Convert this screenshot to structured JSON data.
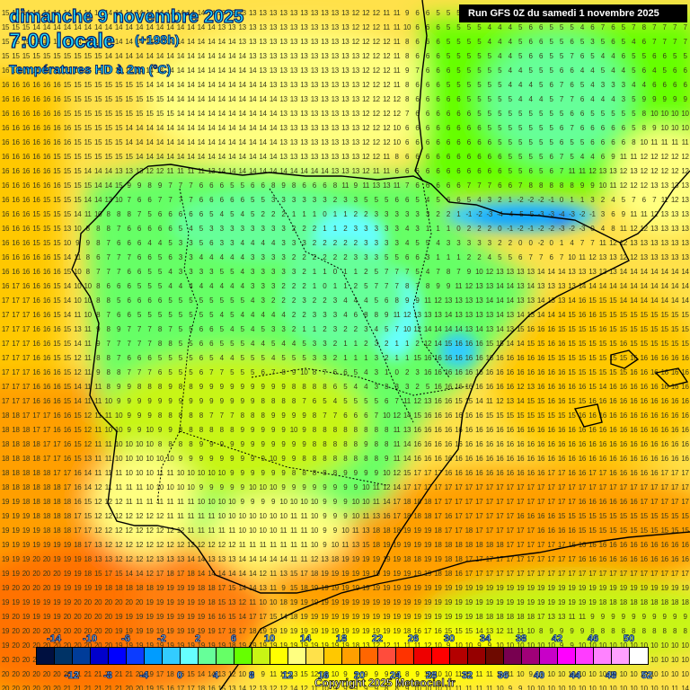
{
  "header": {
    "date": "dimanche 9 novembre 2025",
    "time": "7:00 locale",
    "lead": "(+198h)",
    "parameter": "Températures HD à 2m (°C)",
    "run": "Run GFS 0Z du samedi 1 novembre 2025"
  },
  "footer": {
    "copyright": "Copyright 2025 Meteociel.fr"
  },
  "colorbar": {
    "colors": [
      "#001040",
      "#003366",
      "#003c99",
      "#0000cc",
      "#0000ff",
      "#0c3cff",
      "#009cff",
      "#33ccff",
      "#66ffff",
      "#66ff99",
      "#66ff66",
      "#66ff00",
      "#c8f514",
      "#ffff00",
      "#ffff80",
      "#ffe14a",
      "#ffc800",
      "#ff9f00",
      "#ff6600",
      "#ff4c3c",
      "#ff3300",
      "#ee0000",
      "#ff0000",
      "#b40000",
      "#960000",
      "#6e0a00",
      "#780050",
      "#a00078",
      "#c800c8",
      "#ff00ff",
      "#ff3cff",
      "#ff82ff",
      "#ffa0ff",
      "#ffffff"
    ],
    "top_labels": [
      "-14",
      "-10",
      "-6",
      "-2",
      "2",
      "6",
      "10",
      "14",
      "18",
      "22",
      "26",
      "30",
      "34",
      "38",
      "42",
      "46",
      "50"
    ],
    "bottom_labels": [
      "-12",
      "-8",
      "-4",
      "0",
      "4",
      "8",
      "12",
      "16",
      "20",
      "24",
      "28",
      "32",
      "36",
      "40",
      "44",
      "48",
      "52"
    ]
  },
  "map": {
    "region": "Péninsule Ibérique",
    "value_grid_note": "temperature values °C on 67x48 grid",
    "rows": [
      "15 15 14 14 14 14 14 14 14 14 14 14 14 14 14 14 14 14 14 14 14 13 13 13 13 13 13 13 13 13 13 13 13 13 12 12 12 11 11 9 6 6 5 5 5 4 4 4 4 5 5 6 6 6 6 6 8 7 7 8 8 7 7 7 7 7 7",
      "15 15 15 14 14 14 14 14 14 14 14 14 14 14 14 14 14 14 14 14 14 13 13 13 13 13 13 13 13 13 13 13 13 13 12 12 12 11 11 10 6 6 6 5 5 5 5 4 4 4 5 6 6 5 5 5 4 6 7 6 5 7 8 7 7 7 7",
      "15 15 15 15 15 14 14 14 14 14 14 14 14 14 14 14 14 14 14 14 14 14 14 13 13 13 13 13 13 13 13 13 13 13 12 12 12 12 11 8 6 6 6 5 5 5 5 4 4 4 5 6 6 5 5 6 5 3 5 6 5 4 6 7 7 7 7",
      "15 15 15 15 15 15 15 15 15 15 14 14 14 14 14 14 14 14 14 14 14 14 14 14 13 13 13 13 13 13 13 13 13 13 13 12 12 12 11 8 6 6 6 5 5 5 5 5 4 4 5 6 6 5 5 7 6 5 4 4 6 5 5 6 6 5 5",
      "16 16 15 15 15 15 15 15 15 15 15 15 15 14 14 14 14 14 14 14 14 14 14 14 14 13 13 13 13 13 13 13 13 13 13 12 12 12 11 9 7 6 6 6 5 5 5 5 5 4 4 5 5 5 6 6 4 4 5 4 4 5 6 4 5 6 6",
      "16 16 16 16 16 16 15 15 15 15 15 15 15 15 14 14 14 14 14 14 14 14 14 14 14 14 13 13 13 13 13 13 13 13 13 12 12 12 11 8 6 6 6 5 5 5 5 5 5 4 4 4 5 6 7 6 5 4 3 3 3 4 4 6 6 6 6",
      "16 16 16 16 16 16 15 15 15 15 15 15 15 15 15 15 14 14 14 14 14 14 14 14 14 14 14 13 13 13 13 13 13 13 13 12 12 12 12 8 6 6 6 6 6 5 5 5 5 5 4 4 4 5 7 7 6 4 4 4 3 5 9 9 9 9 9",
      "16 16 16 16 16 16 15 15 15 15 15 15 15 15 15 15 15 14 14 14 14 14 14 14 14 14 14 13 13 13 13 13 13 13 13 12 12 12 12 7 6 6 6 6 6 6 5 5 5 5 5 5 5 5 5 6 6 5 5 5 5 5 8 10 10 10 10",
      "16 16 16 16 16 16 16 15 15 15 15 15 14 14 14 14 14 14 14 14 14 14 14 14 14 14 14 13 13 13 13 13 13 13 13 12 12 12 10 6 6 6 6 6 6 6 6 5 5 5 5 5 5 5 6 7 6 6 6 6 6 5 8 9 10 10 10",
      "16 16 16 16 16 16 16 15 15 15 15 15 14 14 14 14 14 14 14 14 14 14 14 14 14 14 14 13 13 13 13 13 13 13 13 12 12 12 10 6 6 6 6 6 6 6 6 6 5 5 5 5 5 5 6 5 5 6 6 6 6 8 10 11 11 11 11",
      "16 16 16 16 16 15 15 15 15 15 15 15 15 14 14 14 14 14 14 14 14 14 14 14 14 14 14 13 13 13 13 13 13 13 13 12 12 11 8 6 6 6 6 6 6 6 6 6 6 5 5 5 5 6 7 5 4 4 6 9 11 11 12 12 12 12 12",
      "16 16 16 16 16 15 15 15 14 14 14 13 13 13 12 12 11 11 11 11 13 14 14 14 14 14 14 14 14 14 14 14 13 13 13 12 11 11 6 6 6 6 6 6 6 6 6 6 6 5 5 6 5 6 7 11 11 12 13 13 12 13 12 12 12 12 12",
      "16 16 16 16 16 16 15 15 15 14 14 15 9 9 8 9 7 7 7 6 6 6 5 5 6 6 8 9 8 6 6 6 8 11 9 11 13 13 11 7 6 6 6 6 6 7 7 7 6 6 7 8 8 8 8 8 9 9 10 11 12 12 12 13 13 13 13",
      "16 16 16 16 15 15 15 15 14 14 13 10 7 6 6 7 7 7 7 6 6 6 6 6 5 5 3 3 3 3 3 3 2 3 3 5 5 5 6 6 5 4 5 6 6 5 4 3 2 1 -2 -2 -2 -1 0 1 1 3 2 4 5 7 6 7 11 12 13",
      "16 16 16 15 15 15 15 14 11 10 8 8 8 7 5 6 6 6 6 6 5 4 5 4 5 2 2 2 1 1 1 0 1 1 2 2 3 3 3 3 3 3 2 2 1 -1 -2 -3 -4 -4 -5 -5 -3 -3 -4 -3 -2 -1 3 6 9 11 11 12 13 13 13",
      "16 16 16 15 15 15 13 10 8 8 8 7 6 6 6 6 6 5 4 5 3 3 3 3 3 3 3 3 2 2 2 1 1 2 3 3 3 3 3 4 3 1 1 1 0 2 2 2 0 -1 -2 -1 -2 -2 -3 -2 -3 0 4 8 11 12 12 13 13 13 13",
      "16 16 16 15 15 15 10 9 9 8 7 6 6 6 4 4 5 3 3 5 6 3 3 4 4 4 4 3 3 3 2 2 2 2 2 3 3 3 3 4 5 5 4 3 3 3 3 3 2 2 0 0 -2 0 1 4 7 7 11 12 12 13 13 13 13 13 13",
      "16 16 16 16 16 15 14 11 8 6 7 7 7 6 6 5 6 3 3 4 4 4 4 4 3 3 3 3 2 2 2 2 2 2 3 3 3 5 5 6 6 3 1 1 1 2 2 4 5 5 6 7 7 6 7 10 11 12 13 13 12 12 13 13 13 13 13",
      "16 16 16 16 16 16 15 10 8 7 7 7 6 6 5 5 4 3 3 3 3 5 5 4 3 3 3 3 3 2 1 1 0 1 1 2 5 7 7 7 5 4 7 8 7 9 10 12 13 13 13 13 14 14 14 13 13 13 13 13 14 14 14 14 14 14 14",
      "16 17 16 16 16 15 14 10 10 8 6 6 6 5 5 5 4 4 4 4 4 4 4 4 3 3 3 2 2 2 1 0 1 1 2 5 7 7 7 8 7 8 9 9 11 12 13 13 14 14 13 14 13 13 13 13 14 14 14 14 14 14 14 14 14 14 14",
      "17 17 17 16 16 15 14 10 10 8 8 5 6 6 6 6 5 5 5 5 5 5 5 5 4 3 2 2 2 3 2 2 3 4 4 4 5 6 8 9 9 11 12 13 13 13 13 14 14 14 13 13 14 13 13 14 16 15 15 15 14 14 14 14 14 14 14",
      "17 17 17 16 16 15 14 11 10 8 7 6 6 5 5 5 5 5 5 5 5 4 5 4 4 4 4 4 2 2 3 3 3 4 6 8 8 9 11 12 13 13 13 14 13 13 13 13 14 13 14 13 14 14 14 15 16 16 15 15 15 15 15 15 15 15 15",
      "17 17 17 16 16 16 15 13 11 9 8 9 7 7 7 8 7 5 5 6 6 5 4 5 4 5 3 3 2 1 1 2 3 2 2 3 4 5 7 10 12 14 14 14 14 13 14 13 14 13 15 16 16 16 15 15 15 15 16 15 15 15 15 15 15 15 15",
      "17 17 17 16 16 15 15 14 11 9 7 7 7 7 7 8 8 5 5 6 6 5 5 5 4 4 5 4 4 5 3 3 2 1 1 2 3 2 1 1 2 12 14 15 16 16 16 15 15 14 14 15 15 16 16 15 15 15 15 15 16 15 15 15 15 15 15",
      "17 17 17 16 16 15 15 12 11 8 8 7 6 6 6 5 5 5 5 6 5 4 4 5 5 5 4 5 5 5 3 3 2 1 1 1 3 2 1 1 15 16 16 16 16 16 16 16 16 16 16 16 16 15 15 15 15 15 15 15 15 16 16 16 16 16 16",
      "17 17 17 16 16 16 15 12 11 9 8 8 7 7 7 6 5 5 5 6 7 7 5 5 5 6 7 8 9 10 8 7 6 6 5 4 3 1 0 2 3 16 16 16 16 16 16 16 16 16 16 16 16 16 16 15 15 15 15 15 15 16 16 16 16 16 16",
      "17 17 17 16 16 16 15 14 11 11 8 9 9 8 8 8 9 8 8 9 9 9 9 9 9 9 9 9 8 8 8 8 6 5 4 4 3 3 3 3 2 5 16 16 16 16 16 16 16 16 12 13 16 16 16 16 16 15 14 16 16 16 16 16 16 16 16",
      "17 17 17 16 16 16 15 14 11 11 10 9 9 9 9 9 9 9 9 9 9 9 9 9 9 8 8 8 8 7 6 5 4 5 5 5 5 6 7 11 12 13 16 16 15 15 14 11 12 13 14 15 15 16 16 15 15 16 16 16 16 16 16 16 16 16 16",
      "18 18 17 17 17 16 16 15 12 11 11 10 9 9 9 8 8 8 8 8 7 7 7 8 8 8 9 9 9 9 8 7 7 6 6 6 7 10 12 14 15 16 16 16 16 16 16 15 15 15 15 15 15 15 15 15 16 16 16 16 16 16 16 16 16 16 16",
      "18 18 18 17 17 16 16 15 12 11 10 10 9 9 10 9 9 8 8 8 8 8 8 9 9 9 9 9 10 9 8 8 8 8 8 8 8 8 11 13 16 16 16 16 16 16 16 16 16 16 16 16 16 16 16 16 16 16 16 16 16 16 16 16 16 16 16",
      "18 18 18 18 17 17 16 15 12 11 11 10 10 10 10 8 8 8 8 9 9 9 9 9 9 9 9 9 9 9 8 8 8 8 8 9 8 8 11 14 16 16 16 16 16 16 16 16 16 16 16 16 16 16 16 16 16 16 16 16 16 16 16 16 16 16 16",
      "18 18 18 18 17 17 16 15 13 11 11 10 10 10 10 10 10 9 9 9 9 9 9 9 9 9 10 9 9 8 8 8 8 8 8 8 8 9 11 14 16 16 16 16 16 16 16 16 16 16 16 16 16 16 16 16 16 16 16 16 16 16 16 16 16 16 16",
      "18 18 18 18 18 17 17 16 14 11 11 11 10 10 10 11 11 10 10 10 10 10 9 9 9 9 9 9 8 8 8 8 8 9 9 9 9 10 12 15 17 17 17 16 16 16 16 16 16 16 16 16 16 17 17 16 16 17 17 16 16 16 16 16 17 17 17",
      "18 18 18 18 18 18 17 16 14 12 11 11 11 11 10 10 10 10 10 9 9 9 9 9 10 10 10 9 9 9 9 9 9 9 9 10 11 12 14 17 17 17 17 17 17 17 17 17 17 17 17 17 17 17 17 17 17 17 17 17 17 17 17 17 17 17 17",
      "19 19 18 18 18 18 18 16 15 12 12 12 11 11 11 11 11 11 11 10 10 10 10 9 9 9 9 10 10 10 10 9 9 9 10 10 11 14 17 18 18 18 17 17 17 17 17 17 17 17 17 17 17 17 17 17 16 16 16 16 16 16 17 17 17 17 17",
      "19 19 19 18 18 18 18 17 15 12 12 12 12 12 12 12 11 11 11 11 11 10 10 10 10 10 10 10 11 11 10 9 9 9 10 11 13 16 17 18 18 18 17 16 17 17 17 17 17 17 16 16 16 16 15 15 15 15 15 15 15 15 15 15 15 15 15",
      "19 19 19 19 18 18 18 17 17 12 12 12 12 12 12 12 12 12 11 11 11 11 11 10 10 10 10 11 11 11 10 9 9 10 11 13 18 18 18 19 19 19 18 17 17 18 17 17 17 17 17 17 16 16 16 16 15 15 15 15 15 15 15 15 15 15 15",
      "19 19 19 19 19 19 19 18 17 13 12 12 12 12 12 12 12 12 12 12 12 12 12 11 11 11 11 11 11 11 10 9 10 11 13 15 18 19 19 19 19 19 18 18 18 18 18 18 18 17 17 17 17 17 17 16 16 16 16 16 16 16 16 16 16 16 16",
      "19 19 19 20 20 19 19 19 18 13 13 12 12 12 12 13 13 13 14 14 13 13 13 14 14 14 14 14 11 11 12 13 18 19 19 19 19 19 19 18 18 19 19 18 18 17 17 17 17 17 17 17 17 17 17 17 16 16 16 16 16 16 16 16 16 16 16",
      "19 19 20 20 20 20 19 19 18 15 17 15 14 14 12 17 18 17 18 14 14 14 14 14 14 12 11 13 15 17 18 19 19 19 19 19 19 19 19 19 19 19 18 18 16 17 17 17 17 17 17 17 17 17 17 17 17 17 17 17 17 17 17 17 17 17 17",
      "19 20 20 20 20 19 19 19 19 19 18 18 18 18 18 19 19 19 19 18 18 17 15 14 14 13 11 9 15 18 19 19 19 19 19 19 19 19 19 19 19 19 19 19 19 19 19 19 19 19 19 19 19 19 19 19 19 19 19 19 19 19 19 19 19 19 19",
      "19 19 19 19 19 19 19 20 20 20 20 20 20 20 19 19 19 19 19 19 18 15 13 12 11 10 10 18 19 19 19 19 19 19 19 19 19 19 19 19 19 19 19 19 19 19 19 19 19 19 19 19 19 19 19 19 19 19 18 18 18 18 18 18 18 18 18",
      "19 20 19 19 19 19 20 20 20 20 20 19 19 19 19 19 19 19 19 19 16 16 15 14 17 17 15 14 18 19 19 19 19 19 19 19 19 19 19 19 19 19 19 19 19 19 18 18 18 18 18 18 17 13 13 11 11 9 9 9 9 9 9 9 9 9 9",
      "19 20 20 20 20 20 20 20 20 20 20 19 19 19 19 19 19 19 19 19 19 17 18 17 18 19 19 19 19 19 19 19 19 19 19 19 19 19 19 18 16 17 16 15 15 15 14 13 12 11 11 10 8 9 9 9 9 8 8 8 8 8 8 8 8 8 8",
      "19 20 20 20 20 20 20 20 20 20 20 19 19 19 19 19 19 19 19 19 19 19 18 19 19 19 19 19 19 19 19 19 19 19 18 13 12 12 11 11 11 12 10 9 10 10 9 9 10 10 10 10 10 10 9 9 10 10 10 10 10 10 10 10 10 10 10",
      "20 20 20 20 20 20 20 20 20 20 20 20 20 20 20 19 19 19 19 19 19 19 17 16 16 18 19 19 19 14 13 13 14 14 13 13 13 12 11 9 10 9 9 9 9 9 9 9 9 10 9 9 10 10 10 10 10 10 10 10 10 10 10 10 10 10 10",
      "20 20 20 20 20 20 20 21 21 21 21 21 21 20 19 17 18 16 15 14 14 13 12 10 9 9 11 12 13 15 12 11 10 9 9 9 9 9 8 8 9 10 10 10 11 11 11 11 11 11 10 9 9 10 10 10 10 10 10 10 10 10 10 10 10 10 10",
      "20 20 20 20 20 20 21 21 21 21 21 21 20 20 19 15 16 17 17 18 16 15 13 14 12 13 12 12 14 12 11 10 9 9 9 9 9 8 8 9 10 10 10 11 11 11 11 11 10 9 9 10 10 10 10 10 10 10 10 10 10 10 10 10 10 11 14"
    ]
  }
}
